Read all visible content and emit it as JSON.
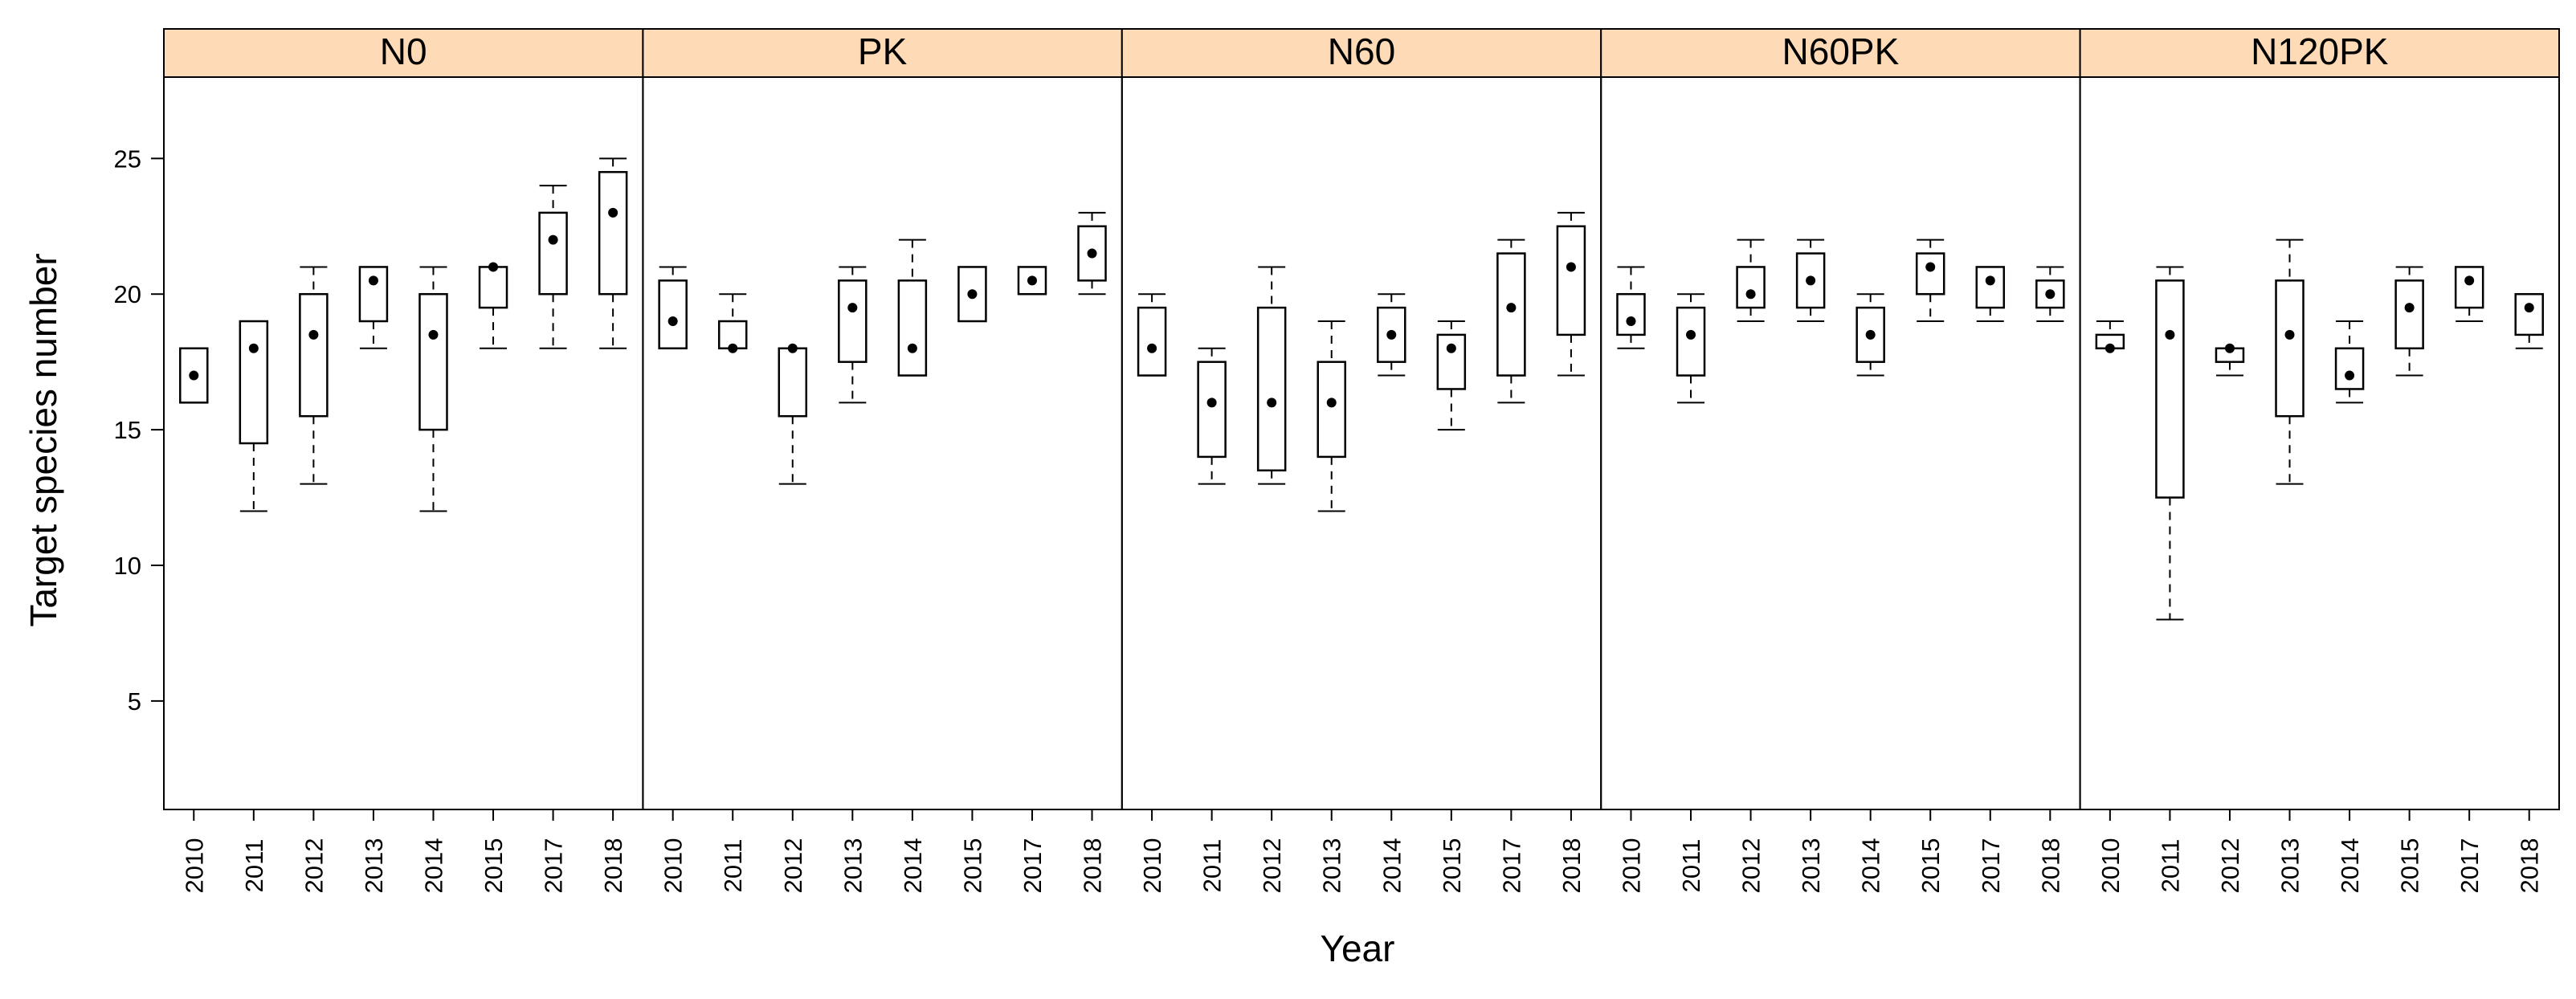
{
  "chart_data": {
    "type": "box",
    "xlabel": "Year",
    "ylabel": "Target species number",
    "ylim": [
      1,
      28
    ],
    "y_ticks": [
      5,
      10,
      15,
      20,
      25
    ],
    "categories": [
      "2010",
      "2011",
      "2012",
      "2013",
      "2014",
      "2015",
      "2017",
      "2018"
    ],
    "strip_color": "#FFDAB6",
    "panels": [
      {
        "name": "N0",
        "boxes": [
          {
            "year": "2010",
            "min": 16,
            "q1": 16,
            "median": 17,
            "q3": 18,
            "max": 18
          },
          {
            "year": "2011",
            "min": 12,
            "q1": 14.5,
            "median": 18,
            "q3": 19,
            "max": 19
          },
          {
            "year": "2012",
            "min": 13,
            "q1": 15.5,
            "median": 18.5,
            "q3": 20,
            "max": 21
          },
          {
            "year": "2013",
            "min": 18,
            "q1": 19,
            "median": 20.5,
            "q3": 21,
            "max": 21
          },
          {
            "year": "2014",
            "min": 12,
            "q1": 15,
            "median": 18.5,
            "q3": 20,
            "max": 21
          },
          {
            "year": "2015",
            "min": 18,
            "q1": 19.5,
            "median": 21,
            "q3": 21,
            "max": 21
          },
          {
            "year": "2017",
            "min": 18,
            "q1": 20,
            "median": 22,
            "q3": 23,
            "max": 24
          },
          {
            "year": "2018",
            "min": 18,
            "q1": 20,
            "median": 23,
            "q3": 24.5,
            "max": 25
          }
        ]
      },
      {
        "name": "PK",
        "boxes": [
          {
            "year": "2010",
            "min": 18,
            "q1": 18,
            "median": 19,
            "q3": 20.5,
            "max": 21
          },
          {
            "year": "2011",
            "min": 18,
            "q1": 18,
            "median": 18,
            "q3": 19,
            "max": 20
          },
          {
            "year": "2012",
            "min": 13,
            "q1": 15.5,
            "median": 18,
            "q3": 18,
            "max": 18
          },
          {
            "year": "2013",
            "min": 16,
            "q1": 17.5,
            "median": 19.5,
            "q3": 20.5,
            "max": 21
          },
          {
            "year": "2014",
            "min": 17,
            "q1": 17,
            "median": 18,
            "q3": 20.5,
            "max": 22
          },
          {
            "year": "2015",
            "min": 19,
            "q1": 19,
            "median": 20,
            "q3": 21,
            "max": 21
          },
          {
            "year": "2017",
            "min": 20,
            "q1": 20,
            "median": 20.5,
            "q3": 21,
            "max": 21
          },
          {
            "year": "2018",
            "min": 20,
            "q1": 20.5,
            "median": 21.5,
            "q3": 22.5,
            "max": 23
          }
        ]
      },
      {
        "name": "N60",
        "boxes": [
          {
            "year": "2010",
            "min": 17,
            "q1": 17,
            "median": 18,
            "q3": 19.5,
            "max": 20
          },
          {
            "year": "2011",
            "min": 13,
            "q1": 14,
            "median": 16,
            "q3": 17.5,
            "max": 18
          },
          {
            "year": "2012",
            "min": 13,
            "q1": 13.5,
            "median": 16,
            "q3": 19.5,
            "max": 21
          },
          {
            "year": "2013",
            "min": 12,
            "q1": 14,
            "median": 16,
            "q3": 17.5,
            "max": 19
          },
          {
            "year": "2014",
            "min": 17,
            "q1": 17.5,
            "median": 18.5,
            "q3": 19.5,
            "max": 20
          },
          {
            "year": "2015",
            "min": 15,
            "q1": 16.5,
            "median": 18,
            "q3": 18.5,
            "max": 19
          },
          {
            "year": "2017",
            "min": 16,
            "q1": 17,
            "median": 19.5,
            "q3": 21.5,
            "max": 22
          },
          {
            "year": "2018",
            "min": 17,
            "q1": 18.5,
            "median": 21,
            "q3": 22.5,
            "max": 23
          }
        ]
      },
      {
        "name": "N60PK",
        "boxes": [
          {
            "year": "2010",
            "min": 18,
            "q1": 18.5,
            "median": 19,
            "q3": 20,
            "max": 21
          },
          {
            "year": "2011",
            "min": 16,
            "q1": 17,
            "median": 18.5,
            "q3": 19.5,
            "max": 20
          },
          {
            "year": "2012",
            "min": 19,
            "q1": 19.5,
            "median": 20,
            "q3": 21,
            "max": 22
          },
          {
            "year": "2013",
            "min": 19,
            "q1": 19.5,
            "median": 20.5,
            "q3": 21.5,
            "max": 22
          },
          {
            "year": "2014",
            "min": 17,
            "q1": 17.5,
            "median": 18.5,
            "q3": 19.5,
            "max": 20
          },
          {
            "year": "2015",
            "min": 19,
            "q1": 20,
            "median": 21,
            "q3": 21.5,
            "max": 22
          },
          {
            "year": "2017",
            "min": 19,
            "q1": 19.5,
            "median": 20.5,
            "q3": 21,
            "max": 21
          },
          {
            "year": "2018",
            "min": 19,
            "q1": 19.5,
            "median": 20,
            "q3": 20.5,
            "max": 21
          }
        ]
      },
      {
        "name": "N120PK",
        "boxes": [
          {
            "year": "2010",
            "min": 18,
            "q1": 18,
            "median": 18,
            "q3": 18.5,
            "max": 19
          },
          {
            "year": "2011",
            "min": 8,
            "q1": 12.5,
            "median": 18.5,
            "q3": 20.5,
            "max": 21
          },
          {
            "year": "2012",
            "min": 17,
            "q1": 17.5,
            "median": 18,
            "q3": 18,
            "max": 18
          },
          {
            "year": "2013",
            "min": 13,
            "q1": 15.5,
            "median": 18.5,
            "q3": 20.5,
            "max": 22
          },
          {
            "year": "2014",
            "min": 16,
            "q1": 16.5,
            "median": 17,
            "q3": 18,
            "max": 19
          },
          {
            "year": "2015",
            "min": 17,
            "q1": 18,
            "median": 19.5,
            "q3": 20.5,
            "max": 21
          },
          {
            "year": "2017",
            "min": 19,
            "q1": 19.5,
            "median": 20.5,
            "q3": 21,
            "max": 21
          },
          {
            "year": "2018",
            "min": 18,
            "q1": 18.5,
            "median": 19.5,
            "q3": 20,
            "max": 20
          }
        ]
      }
    ]
  }
}
